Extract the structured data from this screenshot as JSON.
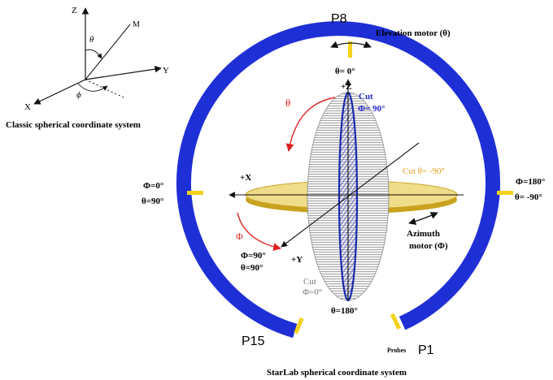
{
  "colors": {
    "ring": "#1f2fd6",
    "marker": "#f2d21c",
    "arrow_red": "#e02020",
    "cut_orange": "#e6a020",
    "cut_blue": "#2a2acc",
    "disk_fill": "#f7e9a0",
    "disk_edge": "#c9a21e",
    "axis": "#111111"
  },
  "classic": {
    "z": "Z",
    "y": "Y",
    "x": "X",
    "m": "M",
    "theta": "θ",
    "phi": "ϕ",
    "caption": "Classic spherical coordinate system"
  },
  "probes": {
    "p8": "P8",
    "p15": "P15",
    "p1": "P1",
    "probes_label": "Probes"
  },
  "motors": {
    "elevation": "Elevation motor (θ)",
    "azimuth_line1": "Azimuth",
    "azimuth_line2": "motor (Φ)"
  },
  "axes": {
    "plus_z": "+Z",
    "plus_x": "+X",
    "plus_y": "+Y"
  },
  "angles": {
    "top": "θ= 0°",
    "bottom": "θ=180°",
    "left_phi": "Φ=0°",
    "left_theta": "θ=90°",
    "right_phi": "Φ=180°",
    "right_theta": "θ= -90°",
    "front_phi": "Φ=90°",
    "front_theta": "θ=90°",
    "theta_symbol": "θ",
    "phi_symbol": "Φ"
  },
  "cuts": {
    "vertical_line1": "Cut",
    "vertical_line2": "Φ= 90°",
    "horizontal": "Cut  θ= -90°",
    "front_line1": "Cut",
    "front_line2": "Φ=0°"
  },
  "caption": "StarLab spherical coordinate system"
}
